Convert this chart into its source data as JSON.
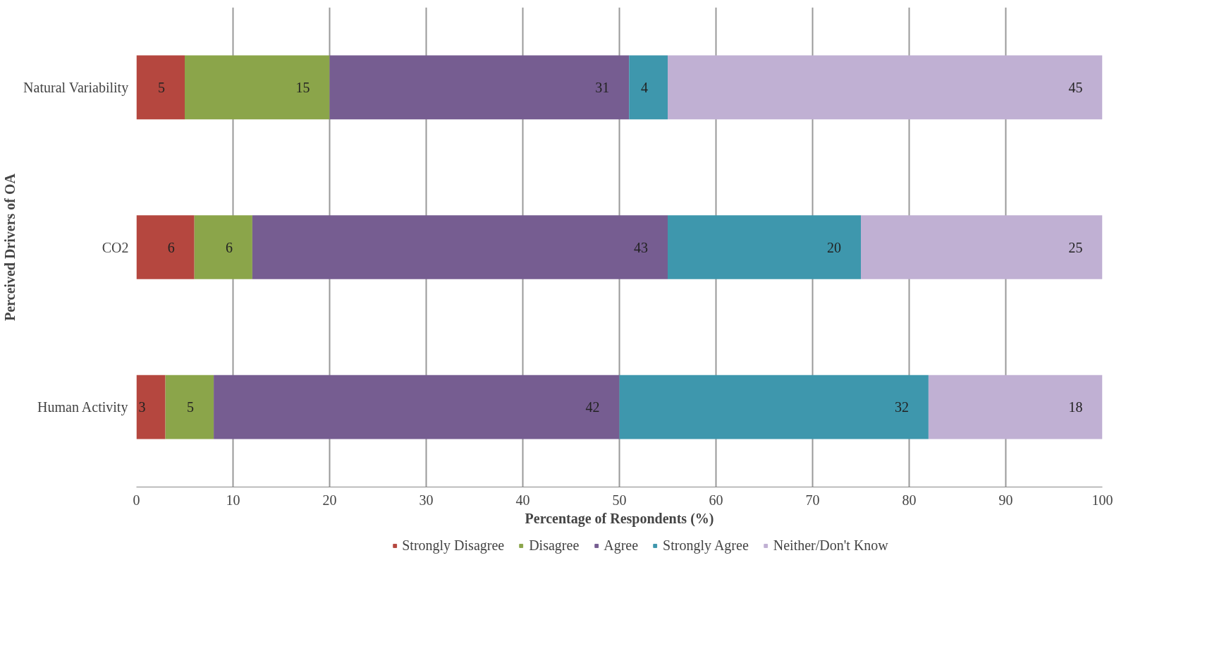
{
  "chart_data": {
    "type": "bar",
    "orientation": "horizontal",
    "stacked": true,
    "xlabel": "Percentage of Respondents (%)",
    "ylabel": "Perceived Drivers of OA",
    "categories": [
      "Natural Variability",
      "CO2",
      "Human Activity"
    ],
    "series": [
      {
        "name": "Strongly Disagree",
        "color": "#b5473f",
        "values": [
          5,
          6,
          3
        ]
      },
      {
        "name": "Disagree",
        "color": "#8ba54a",
        "values": [
          15,
          6,
          5
        ]
      },
      {
        "name": "Agree",
        "color": "#765d91",
        "values": [
          31,
          43,
          42
        ]
      },
      {
        "name": "Strongly Agree",
        "color": "#3e97ad",
        "values": [
          4,
          20,
          32
        ]
      },
      {
        "name": "Neither/Don't Know",
        "color": "#c0b0d3",
        "values": [
          45,
          25,
          18
        ]
      }
    ],
    "xlim": [
      0,
      100
    ],
    "xticks": [
      0,
      10,
      20,
      30,
      40,
      50,
      60,
      70,
      80,
      90,
      100
    ],
    "grid": "x",
    "legend": "bottom",
    "data_labels": true
  }
}
